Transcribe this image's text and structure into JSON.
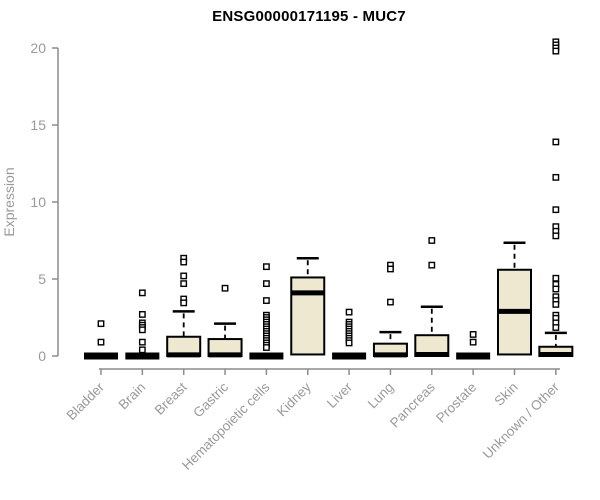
{
  "chart_data": {
    "type": "boxplot",
    "title": "ENSG00000171195 - MUC7",
    "ylabel": "Expression",
    "xlabel": "",
    "ylim": [
      0,
      20
    ],
    "yticks": [
      0,
      5,
      10,
      15,
      20
    ],
    "grid": false,
    "legend": "none",
    "categories": [
      "Bladder",
      "Brain",
      "Breast",
      "Gastric",
      "Hematopoietic cells",
      "Kidney",
      "Liver",
      "Lung",
      "Pancreas",
      "Prostate",
      "Skin",
      "Unknown / Other"
    ],
    "style": {
      "box_fill": "#ede8cf",
      "box_stroke": "#000000",
      "axis_color": "#8c8c8c",
      "label_color": "#9a9a9a",
      "title_color": "#000000",
      "background": "#ffffff"
    },
    "series": [
      {
        "category": "Bladder",
        "collapsed": true,
        "q1": 0,
        "median": 0.05,
        "q3": 0.1,
        "whisker_low": 0,
        "whisker_high": 0.1,
        "outliers": [
          2.1,
          0.9
        ]
      },
      {
        "category": "Brain",
        "collapsed": true,
        "q1": 0,
        "median": 0.05,
        "q3": 0.1,
        "whisker_low": 0,
        "whisker_high": 0.1,
        "outliers": [
          4.1,
          2.7,
          2.15,
          2.0,
          1.85,
          1.7,
          0.9,
          0.4
        ]
      },
      {
        "category": "Breast",
        "collapsed": false,
        "q1": 0,
        "median": 0.07,
        "q3": 1.25,
        "whisker_low": 0,
        "whisker_high": 2.9,
        "outliers": [
          6.35,
          6.1,
          5.2,
          4.7,
          3.7,
          3.45
        ]
      },
      {
        "category": "Gastric",
        "collapsed": false,
        "q1": 0,
        "median": 0.07,
        "q3": 1.1,
        "whisker_low": 0,
        "whisker_high": 2.1,
        "outliers": [
          4.4
        ]
      },
      {
        "category": "Hematopoietic cells",
        "collapsed": true,
        "q1": 0,
        "median": 0.05,
        "q3": 0.1,
        "whisker_low": 0,
        "whisker_high": 0.1,
        "outliers": [
          5.8,
          4.7,
          3.6,
          2.65,
          2.5,
          2.35,
          2.2,
          2.05,
          1.9,
          1.75,
          1.6,
          1.45,
          1.3,
          1.15,
          1.0,
          0.85,
          0.7,
          0.55
        ]
      },
      {
        "category": "Kidney",
        "collapsed": false,
        "q1": 0.1,
        "median": 4.1,
        "q3": 5.1,
        "whisker_low": 0.1,
        "whisker_high": 6.35,
        "outliers": []
      },
      {
        "category": "Liver",
        "collapsed": true,
        "q1": 0,
        "median": 0.05,
        "q3": 0.1,
        "whisker_low": 0,
        "whisker_high": 0.1,
        "outliers": [
          2.85,
          2.2,
          2.05,
          1.9,
          1.75,
          1.6,
          1.45,
          1.3,
          1.15,
          1.0,
          0.85
        ]
      },
      {
        "category": "Lung",
        "collapsed": false,
        "q1": 0,
        "median": 0.07,
        "q3": 0.8,
        "whisker_low": 0,
        "whisker_high": 1.55,
        "outliers": [
          5.9,
          5.65,
          3.5
        ]
      },
      {
        "category": "Pancreas",
        "collapsed": false,
        "q1": 0,
        "median": 0.1,
        "q3": 1.35,
        "whisker_low": 0,
        "whisker_high": 3.2,
        "outliers": [
          7.5,
          5.9
        ]
      },
      {
        "category": "Prostate",
        "collapsed": true,
        "q1": 0,
        "median": 0.05,
        "q3": 0.1,
        "whisker_low": 0,
        "whisker_high": 0.1,
        "outliers": [
          1.4,
          0.9
        ]
      },
      {
        "category": "Skin",
        "collapsed": false,
        "q1": 0.1,
        "median": 2.9,
        "q3": 5.6,
        "whisker_low": 0.1,
        "whisker_high": 7.35,
        "outliers": []
      },
      {
        "category": "Unknown / Other",
        "collapsed": false,
        "q1": 0,
        "median": 0.1,
        "q3": 0.6,
        "whisker_low": 0,
        "whisker_high": 1.5,
        "outliers": [
          20.4,
          20.2,
          20.0,
          19.8,
          13.9,
          11.6,
          9.5,
          8.4,
          8.1,
          7.8,
          5.05,
          4.65,
          4.35,
          3.85,
          3.6,
          3.35,
          2.65,
          2.45,
          2.15,
          1.85
        ]
      }
    ]
  }
}
